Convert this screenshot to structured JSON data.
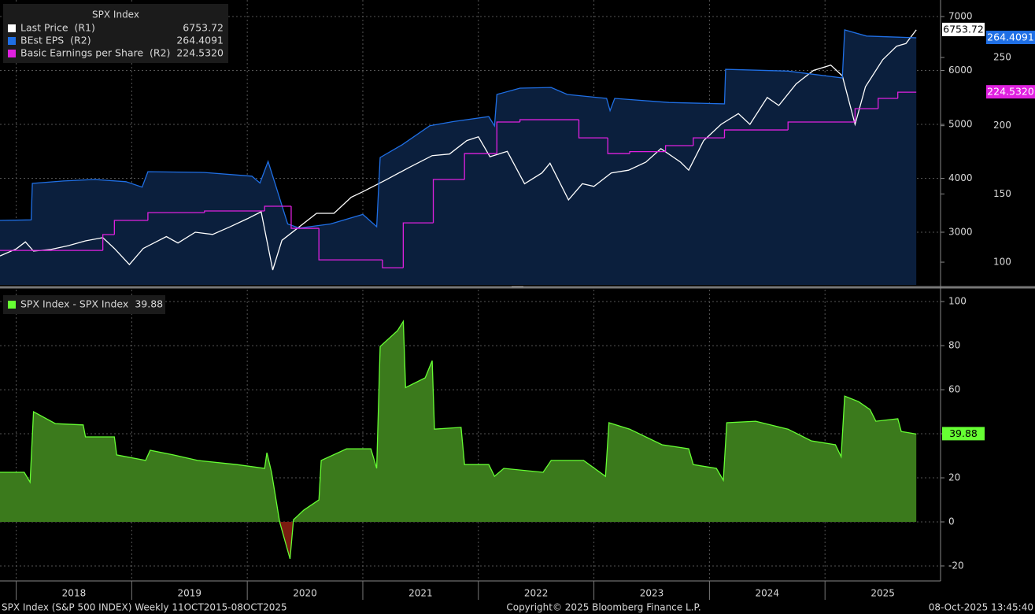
{
  "chart_data": [
    {
      "type": "line",
      "legend_title": "SPX Index",
      "xlim": [
        2017.86,
        2026.0
      ],
      "xticks": [
        2018,
        2019,
        2020,
        2021,
        2022,
        2023,
        2024,
        2025
      ],
      "ylim": [
        2022,
        7307
      ],
      "yticks": [
        3000,
        4000,
        5000,
        6000,
        7000
      ],
      "y2lim": [
        83.3,
        292.1
      ],
      "y2ticks": [
        100,
        150,
        200,
        250
      ],
      "grid": true,
      "series": [
        {
          "name": "Last Price  (R1)",
          "color": "#ffffff",
          "x": [
            2017.86,
            2018.0,
            2018.08,
            2018.15,
            2018.3,
            2018.45,
            2018.6,
            2018.75,
            2018.85,
            2018.98,
            2019.1,
            2019.3,
            2019.4,
            2019.55,
            2019.7,
            2019.85,
            2020.0,
            2020.12,
            2020.22,
            2020.3,
            2020.45,
            2020.6,
            2020.75,
            2020.9,
            2021.0,
            2021.2,
            2021.4,
            2021.6,
            2021.75,
            2021.9,
            2022.0,
            2022.1,
            2022.25,
            2022.4,
            2022.55,
            2022.62,
            2022.78,
            2022.9,
            2023.0,
            2023.15,
            2023.3,
            2023.45,
            2023.58,
            2023.75,
            2023.82,
            2023.95,
            2024.1,
            2024.25,
            2024.35,
            2024.5,
            2024.6,
            2024.75,
            2024.9,
            2025.05,
            2025.15,
            2025.26,
            2025.35,
            2025.5,
            2025.62,
            2025.7,
            2025.79
          ],
          "values": [
            2560,
            2690,
            2820,
            2650,
            2680,
            2750,
            2840,
            2900,
            2700,
            2400,
            2700,
            2920,
            2800,
            3000,
            2960,
            3100,
            3250,
            3380,
            2300,
            2850,
            3100,
            3350,
            3350,
            3650,
            3750,
            3970,
            4200,
            4420,
            4450,
            4700,
            4770,
            4400,
            4500,
            3900,
            4100,
            4280,
            3600,
            3900,
            3850,
            4100,
            4150,
            4300,
            4550,
            4300,
            4150,
            4700,
            5000,
            5200,
            5000,
            5500,
            5350,
            5750,
            6000,
            6100,
            5900,
            5000,
            5700,
            6200,
            6450,
            6500,
            6753.72
          ]
        },
        {
          "name": "BEst EPS  (R2)",
          "color": "#1f6fe5",
          "fill": "#0b1f3d",
          "axis": "y2",
          "x": [
            2017.86,
            2018.13,
            2018.14,
            2018.41,
            2018.68,
            2018.95,
            2019.09,
            2019.14,
            2019.63,
            2020.04,
            2020.11,
            2020.18,
            2020.25,
            2020.35,
            2020.45,
            2020.72,
            2021.0,
            2021.12,
            2021.15,
            2021.34,
            2021.58,
            2021.78,
            2022.09,
            2022.14,
            2022.16,
            2022.36,
            2022.63,
            2022.77,
            2023.11,
            2023.14,
            2023.18,
            2023.65,
            2024.13,
            2024.14,
            2024.68,
            2025.15,
            2025.17,
            2025.36,
            2025.79
          ],
          "values": [
            130.6,
            131,
            157.7,
            159.5,
            160.6,
            159,
            155,
            166.3,
            165.7,
            163,
            158,
            173.8,
            155,
            128,
            125,
            128,
            135,
            126,
            176.7,
            186,
            200,
            203,
            206.7,
            199.8,
            222.9,
            227.5,
            228,
            222.9,
            220,
            211,
            220,
            217,
            216,
            241.3,
            240,
            235,
            270.2,
            265.7,
            264.4091
          ]
        },
        {
          "name": "Basic Earnings per Share  (R2)",
          "color": "#e020e0",
          "axis": "y2",
          "step": true,
          "last_label": "224.5320",
          "x": [
            2017.86,
            2018.75,
            2018.85,
            2019.14,
            2019.63,
            2020.15,
            2020.38,
            2020.62,
            2021.17,
            2021.35,
            2021.61,
            2021.88,
            2022.16,
            2022.36,
            2022.87,
            2023.12,
            2023.31,
            2023.62,
            2023.86,
            2024.13,
            2024.68,
            2025.26,
            2025.46,
            2025.63
          ],
          "values": [
            108.6,
            120.2,
            130.6,
            136.3,
            137.5,
            141,
            124.8,
            101.7,
            95.9,
            128.8,
            160.6,
            179.6,
            202.7,
            204.4,
            191.1,
            179.6,
            181,
            185.4,
            191.1,
            196.9,
            202.7,
            212.5,
            220,
            224.532
          ]
        }
      ]
    },
    {
      "type": "area",
      "xlim": [
        2017.86,
        2026.0
      ],
      "xticks": [
        2018,
        2019,
        2020,
        2021,
        2022,
        2023,
        2024,
        2025
      ],
      "ylim": [
        -26.8,
        105.4
      ],
      "yticks": [
        -20,
        0,
        20,
        40,
        60,
        80,
        100
      ],
      "grid": true,
      "series": [
        {
          "name": "SPX Index - SPX Index",
          "color": "#66ff33",
          "fill": "#3b7a1c",
          "negative_fill": "#7a1c10",
          "x": [
            2017.86,
            2018.07,
            2018.12,
            2018.15,
            2018.34,
            2018.58,
            2018.6,
            2018.85,
            2018.87,
            2019.12,
            2019.16,
            2019.36,
            2019.57,
            2019.91,
            2020.15,
            2020.17,
            2020.21,
            2020.28,
            2020.37,
            2020.4,
            2020.49,
            2020.62,
            2020.64,
            2020.86,
            2021.07,
            2021.12,
            2021.15,
            2021.3,
            2021.35,
            2021.37,
            2021.54,
            2021.6,
            2021.62,
            2021.85,
            2021.88,
            2022.09,
            2022.14,
            2022.22,
            2022.56,
            2022.63,
            2022.91,
            2023.1,
            2023.13,
            2023.31,
            2023.59,
            2023.82,
            2023.86,
            2024.06,
            2024.12,
            2024.15,
            2024.4,
            2024.68,
            2024.88,
            2025.09,
            2025.14,
            2025.17,
            2025.29,
            2025.39,
            2025.44,
            2025.63,
            2025.66,
            2025.79
          ],
          "values": [
            22.5,
            22.5,
            18,
            50,
            44.6,
            44,
            38.6,
            38.6,
            30.4,
            27.9,
            32.5,
            30.4,
            27.9,
            26,
            24.3,
            31.4,
            22.5,
            0,
            -16.8,
            1,
            5.4,
            10,
            27.9,
            33.2,
            33.2,
            24.3,
            79.6,
            86.8,
            91,
            61,
            65.4,
            73.2,
            42.1,
            42.9,
            26,
            26,
            20.7,
            24.3,
            22.5,
            27.9,
            27.9,
            20.7,
            45,
            42.1,
            35,
            33.2,
            26,
            24.3,
            18.9,
            45,
            45.7,
            42.1,
            36.8,
            35,
            29.6,
            57.1,
            54.6,
            51,
            45.7,
            46.8,
            41,
            39.88
          ]
        }
      ]
    }
  ],
  "footer": {
    "left": "SPX Index (S&P 500 INDEX) Weekly 11OCT2015-08OCT2025",
    "center": "Copyright© 2025 Bloomberg Finance L.P.",
    "right": "08-Oct-2025 13:45:40"
  }
}
